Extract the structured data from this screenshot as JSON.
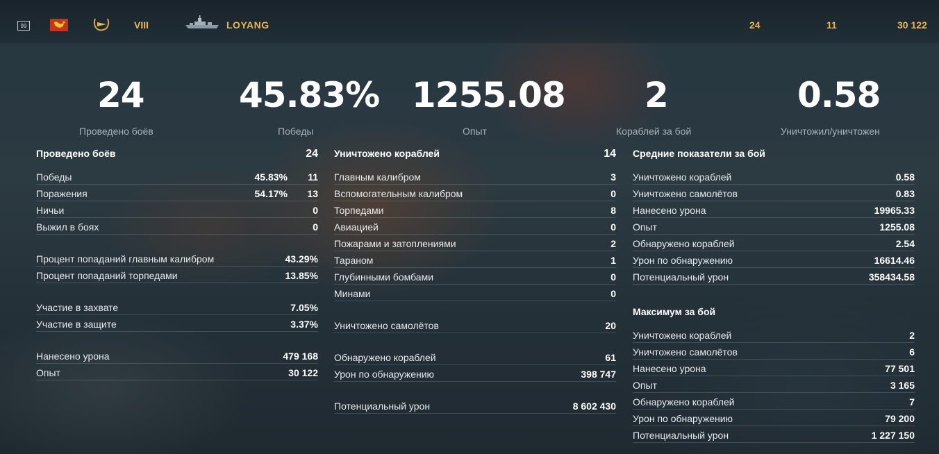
{
  "topbar": {
    "level": "99",
    "tier": "VIII",
    "ship_name": "LOYANG",
    "battles": "24",
    "wins": "11",
    "experience": "30 122",
    "nation_icon": "flag-pan-asia-icon",
    "rank_icon": "destroyer-class-icon",
    "colors": {
      "accent": "#e7b65a",
      "flag": "#c4361c"
    }
  },
  "summary": [
    {
      "value": "24",
      "label": "Проведено боёв"
    },
    {
      "value": "45.83%",
      "label": "Победы"
    },
    {
      "value": "1255.08",
      "label": "Опыт"
    },
    {
      "value": "2",
      "label": "Кораблей за бой"
    },
    {
      "value": "0.58",
      "label": "Уничтожил/уничтожен"
    }
  ],
  "col1": {
    "header": {
      "label": "Проведено боёв",
      "value": "24"
    },
    "rows": [
      {
        "label": "Победы",
        "pct": "45.83%",
        "value": "11"
      },
      {
        "label": "Поражения",
        "pct": "54.17%",
        "value": "13"
      },
      {
        "label": "Ничьи",
        "value": "0"
      },
      {
        "label": "Выжил в боях",
        "value": "0"
      },
      {
        "label": "Процент попаданий главным калибром",
        "value": "43.29%"
      },
      {
        "label": "Процент попаданий торпедами",
        "value": "13.85%"
      },
      {
        "label": "Участие в захвате",
        "value": "7.05%"
      },
      {
        "label": "Участие в защите",
        "value": "3.37%"
      },
      {
        "label": "Нанесено урона",
        "value": "479 168"
      },
      {
        "label": "Опыт",
        "value": "30 122"
      }
    ]
  },
  "col2": {
    "header": {
      "label": "Уничтожено кораблей",
      "value": "14"
    },
    "rows": [
      {
        "label": "Главным калибром",
        "value": "3"
      },
      {
        "label": "Вспомогательным калибром",
        "value": "0"
      },
      {
        "label": "Торпедами",
        "value": "8"
      },
      {
        "label": "Авиацией",
        "value": "0"
      },
      {
        "label": "Пожарами и затоплениями",
        "value": "2"
      },
      {
        "label": "Тараном",
        "value": "1"
      },
      {
        "label": "Глубинными бомбами",
        "value": "0"
      },
      {
        "label": "Минами",
        "value": "0"
      },
      {
        "label": "Уничтожено самолётов",
        "value": "20"
      },
      {
        "label": "Обнаружено кораблей",
        "value": "61"
      },
      {
        "label": "Урон по обнаружению",
        "value": "398 747"
      },
      {
        "label": "Потенциальный урон",
        "value": "8 602 430"
      }
    ]
  },
  "col3": {
    "avg_header": "Средние показатели за бой",
    "avg_rows": [
      {
        "label": "Уничтожено кораблей",
        "value": "0.58"
      },
      {
        "label": "Уничтожено самолётов",
        "value": "0.83"
      },
      {
        "label": "Нанесено урона",
        "value": "19965.33"
      },
      {
        "label": "Опыт",
        "value": "1255.08"
      },
      {
        "label": "Обнаружено кораблей",
        "value": "2.54"
      },
      {
        "label": "Урон по обнаружению",
        "value": "16614.46"
      },
      {
        "label": "Потенциальный урон",
        "value": "358434.58"
      }
    ],
    "max_header": "Максимум за бой",
    "max_rows": [
      {
        "label": "Уничтожено кораблей",
        "value": "2"
      },
      {
        "label": "Уничтожено самолётов",
        "value": "6"
      },
      {
        "label": "Нанесено урона",
        "value": "77 501"
      },
      {
        "label": "Опыт",
        "value": "3 165"
      },
      {
        "label": "Обнаружено кораблей",
        "value": "7"
      },
      {
        "label": "Урон по обнаружению",
        "value": "79 200"
      },
      {
        "label": "Потенциальный урон",
        "value": "1 227 150"
      }
    ]
  }
}
